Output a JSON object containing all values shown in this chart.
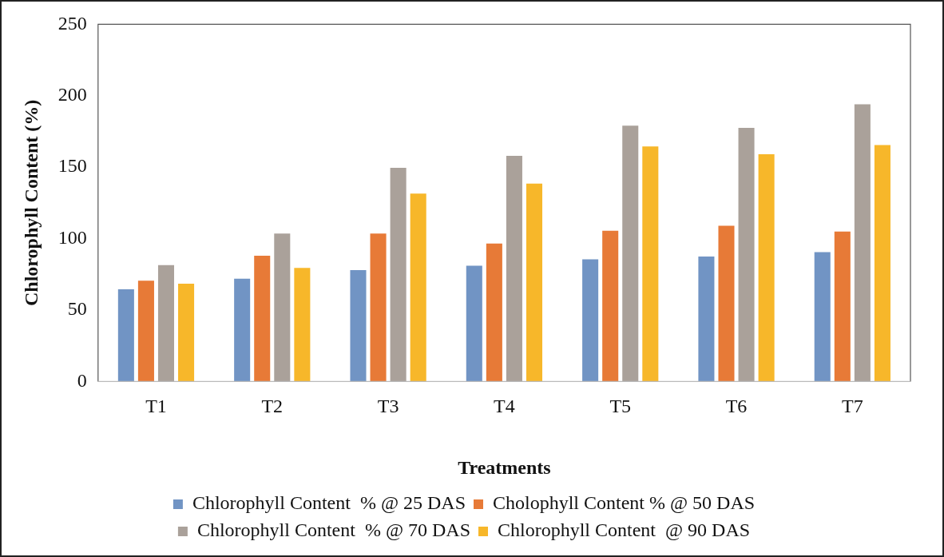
{
  "chart_data": {
    "type": "bar",
    "xlabel": "Treatments",
    "ylabel": "Chlorophyll Content (%)",
    "categories": [
      "T1",
      "T2",
      "T3",
      "T4",
      "T5",
      "T6",
      "T7"
    ],
    "series": [
      {
        "name": "Chlorophyll Content  % @ 25 DAS",
        "color": "#7194c4",
        "values": [
          64.5,
          72,
          78,
          81,
          85.5,
          87.5,
          90.5
        ]
      },
      {
        "name": "Cholophyll Content % @ 50 DAS",
        "color": "#e77a37",
        "values": [
          70.5,
          88,
          103.5,
          96.5,
          105.5,
          109,
          105
        ]
      },
      {
        "name": "Chlorophyll Content  % @ 70 DAS",
        "color": "#aaa19a",
        "values": [
          81.5,
          103.5,
          149.5,
          158,
          179,
          177.5,
          194
        ]
      },
      {
        "name": "Chlorophyll Content  @ 90 DAS",
        "color": "#f7b72a",
        "values": [
          68.5,
          79.5,
          131.5,
          138.5,
          164.5,
          159,
          165.5
        ]
      }
    ],
    "ylim": [
      0,
      250
    ],
    "yticks": [
      0,
      50,
      100,
      150,
      200,
      250
    ],
    "legend": "bottom"
  }
}
